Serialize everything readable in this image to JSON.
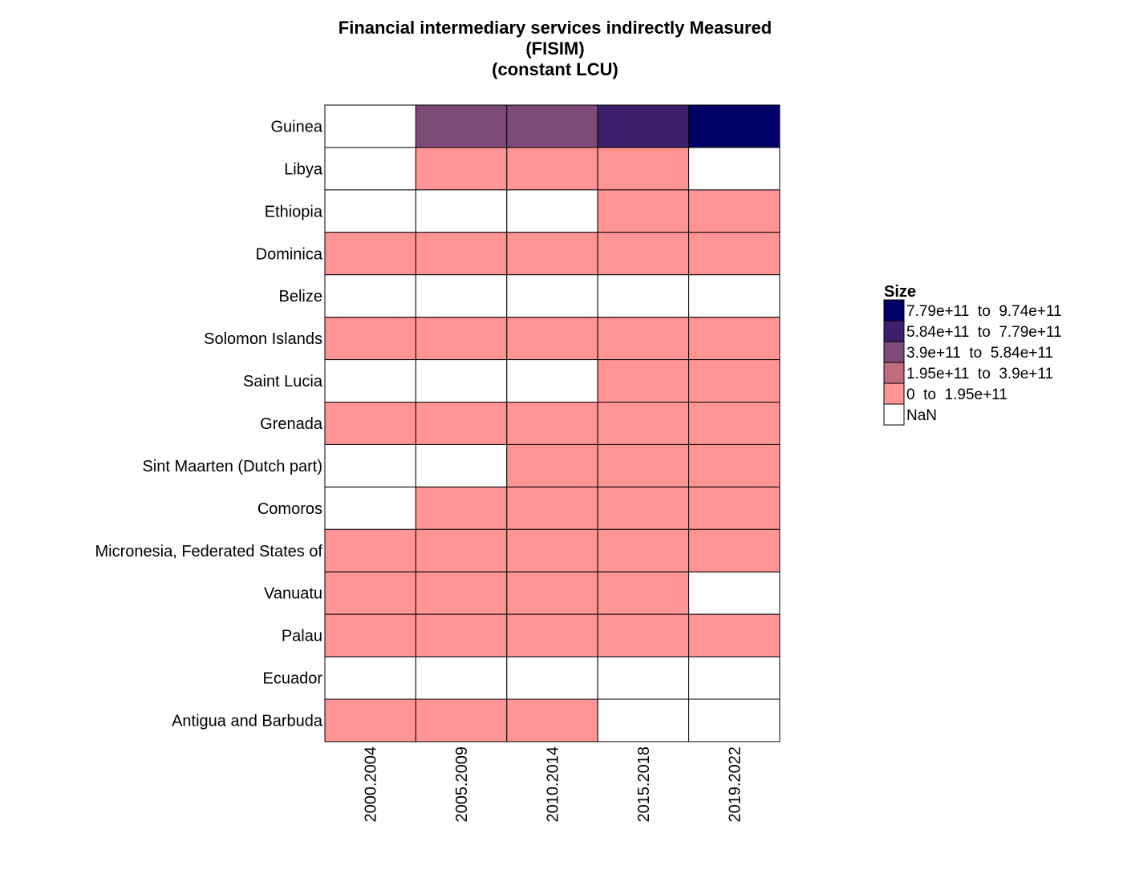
{
  "chart_data": {
    "type": "heatmap",
    "title": [
      "Financial intermediary services indirectly Measured",
      "(FISIM)",
      "(constant LCU)"
    ],
    "columns": [
      "2000.2004",
      "2005.2009",
      "2010.2014",
      "2015.2018",
      "2019.2022"
    ],
    "rows": [
      "Guinea",
      "Libya",
      "Ethiopia",
      "Dominica",
      "Belize",
      "Solomon Islands",
      "Saint Lucia",
      "Grenada",
      "Sint Maarten (Dutch part)",
      "Comoros",
      "Micronesia, Federated States of",
      "Vanuatu",
      "Palau",
      "Ecuador",
      "Antigua and Barbuda"
    ],
    "bins": [
      {
        "label": "7.79e+11  to  9.74e+11",
        "color": "#000066"
      },
      {
        "label": "5.84e+11  to  7.79e+11",
        "color": "#3d1f6b"
      },
      {
        "label": "3.9e+11  to  5.84e+11",
        "color": "#7e4a78"
      },
      {
        "label": "1.95e+11  to  3.9e+11",
        "color": "#bf6b80"
      },
      {
        "label": "0  to  1.95e+11",
        "color": "#ff9494"
      },
      {
        "label": "NaN",
        "color": "#ffffff"
      }
    ],
    "cells": [
      [
        5,
        2,
        2,
        1,
        0
      ],
      [
        5,
        4,
        4,
        4,
        5
      ],
      [
        5,
        5,
        5,
        4,
        4
      ],
      [
        4,
        4,
        4,
        4,
        4
      ],
      [
        5,
        5,
        5,
        5,
        5
      ],
      [
        4,
        4,
        4,
        4,
        4
      ],
      [
        5,
        5,
        5,
        4,
        4
      ],
      [
        4,
        4,
        4,
        4,
        4
      ],
      [
        5,
        5,
        4,
        4,
        4
      ],
      [
        5,
        4,
        4,
        4,
        4
      ],
      [
        4,
        4,
        4,
        4,
        4
      ],
      [
        4,
        4,
        4,
        4,
        5
      ],
      [
        4,
        4,
        4,
        4,
        4
      ],
      [
        5,
        5,
        5,
        5,
        5
      ],
      [
        4,
        4,
        4,
        5,
        5
      ]
    ],
    "legend": {
      "title": "Size",
      "position": "right"
    }
  }
}
